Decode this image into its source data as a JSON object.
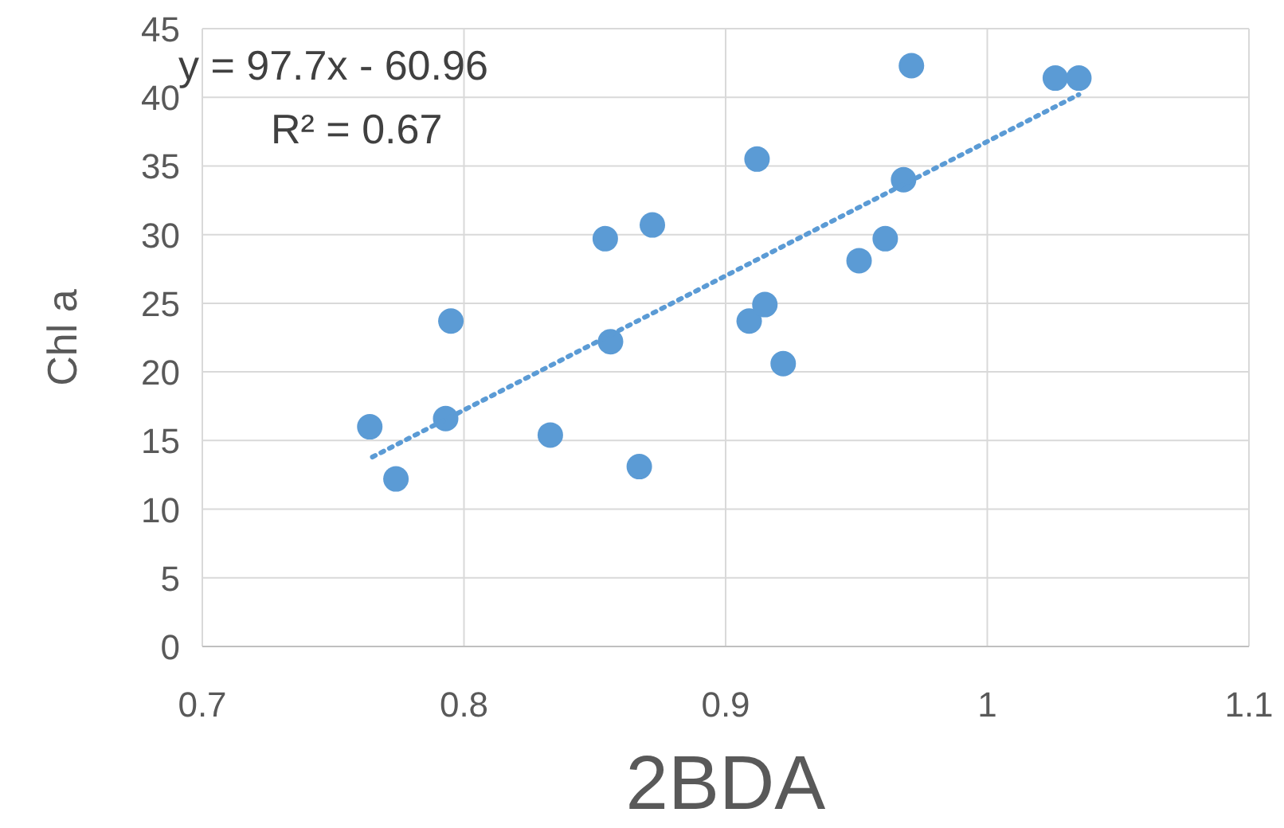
{
  "chart_data": {
    "type": "scatter",
    "xlabel": "2BDA",
    "ylabel": "Chl a",
    "xlim": [
      0.7,
      1.1
    ],
    "xticks": [
      0.7,
      0.8,
      0.9,
      1,
      1.1
    ],
    "ylim": [
      0,
      45
    ],
    "yticks": [
      0,
      5,
      10,
      15,
      20,
      25,
      30,
      35,
      40,
      45
    ],
    "grid": true,
    "marker": "circle",
    "annotations": [
      "y = 97.7x - 60.96",
      "R² = 0.67"
    ],
    "series": [
      {
        "color": "#5b9bd5",
        "x": [
          0.764,
          0.774,
          0.793,
          0.795,
          0.833,
          0.854,
          0.856,
          0.867,
          0.872,
          0.912,
          0.909,
          0.915,
          0.922,
          0.951,
          0.961,
          0.968,
          0.971,
          1.026,
          1.035
        ],
        "values": [
          16.0,
          12.2,
          16.6,
          23.7,
          15.4,
          29.7,
          22.2,
          13.1,
          30.7,
          35.5,
          23.7,
          24.9,
          20.6,
          28.1,
          29.7,
          34.0,
          42.3,
          41.4,
          41.4
        ]
      },
      {
        "type": "line",
        "color": "#5b9bd5",
        "line_style": "dotted",
        "marker": "none",
        "x": [
          0.765,
          1.035
        ],
        "values": [
          13.8,
          40.2
        ]
      }
    ]
  }
}
